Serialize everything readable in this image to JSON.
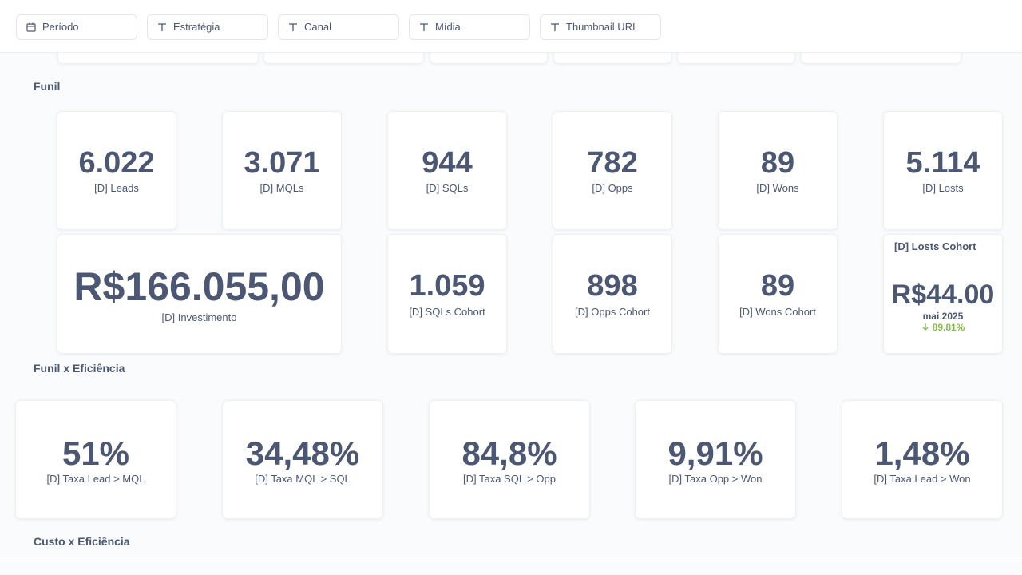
{
  "filters": [
    "Período",
    "Estratégia",
    "Canal",
    "Mídia",
    "Thumbnail URL"
  ],
  "sections": [
    {
      "title": "Funil",
      "cards": [
        {
          "value": "6.022",
          "label": "[D] Leads"
        },
        {
          "value": "3.071",
          "label": "[D] MQLs"
        },
        {
          "value": "944",
          "label": "[D] SQLs"
        },
        {
          "value": "782",
          "label": "[D] Opps"
        },
        {
          "value": "89",
          "label": "[D] Wons"
        },
        {
          "value": "5.114",
          "label": "[D] Losts"
        },
        {
          "value": "R$166.055,00",
          "label": "[D] Investimento"
        },
        {
          "value": "1.059",
          "label": "[D] SQLs Cohort"
        },
        {
          "value": "898",
          "label": "[D] Opps Cohort"
        },
        {
          "value": "89",
          "label": "[D] Wons Cohort"
        }
      ],
      "trend_card": {
        "title": "[D] Losts Cohort",
        "value": "R$44.00",
        "period": "mai 2025",
        "change": "89.81%"
      }
    },
    {
      "title": "Funil x Eficiência",
      "cards": [
        {
          "value": "51%",
          "label": "[D] Taxa Lead > MQL"
        },
        {
          "value": "34,48%",
          "label": "[D] Taxa MQL > SQL"
        },
        {
          "value": "84,8%",
          "label": "[D] Taxa SQL > Opp"
        },
        {
          "value": "9,91%",
          "label": "[D] Taxa Opp > Won"
        },
        {
          "value": "1,48%",
          "label": "[D] Taxa Lead > Won"
        }
      ]
    },
    {
      "title": "Custo x Eficiência"
    }
  ]
}
